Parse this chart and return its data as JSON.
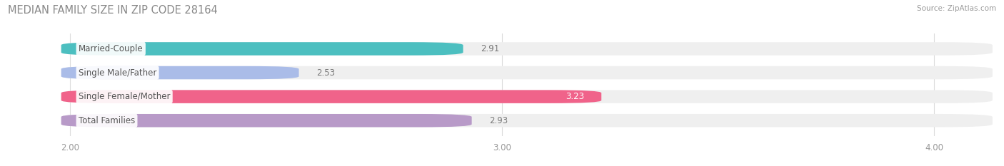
{
  "title": "MEDIAN FAMILY SIZE IN ZIP CODE 28164",
  "source": "Source: ZipAtlas.com",
  "categories": [
    "Married-Couple",
    "Single Male/Father",
    "Single Female/Mother",
    "Total Families"
  ],
  "values": [
    2.91,
    2.53,
    3.23,
    2.93
  ],
  "bar_colors": [
    "#4CBFC0",
    "#AABCE8",
    "#F0638A",
    "#B89AC8"
  ],
  "bar_bg_color": "#EFEFEF",
  "value_colors": [
    "#777777",
    "#777777",
    "#ffffff",
    "#777777"
  ],
  "xlim": [
    1.85,
    4.15
  ],
  "xstart": 2.0,
  "xticks": [
    2.0,
    3.0,
    4.0
  ],
  "xtick_labels": [
    "2.00",
    "3.00",
    "4.00"
  ],
  "figsize": [
    14.06,
    2.33
  ],
  "dpi": 100,
  "title_fontsize": 10.5,
  "label_fontsize": 8.5,
  "value_fontsize": 8.5,
  "tick_fontsize": 8.5,
  "bar_height": 0.55,
  "n_bars": 4
}
